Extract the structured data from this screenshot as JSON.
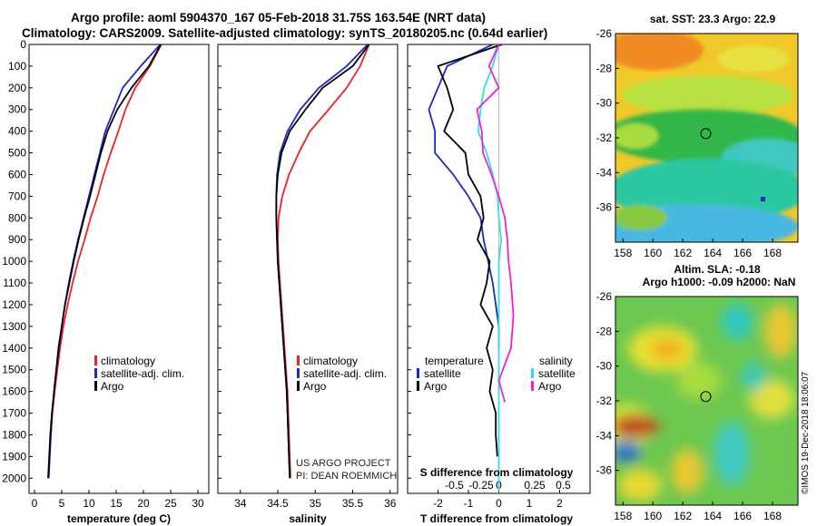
{
  "header": {
    "line1": "Argo profile: aoml 5904370_167 05-Feb-2018 31.75S 163.54E (NRT data)",
    "line2": "Climatology: CARS2009. Satellite-adjusted climatology: synTS_20180205.nc (0.64d earlier)"
  },
  "credits": {
    "project": "US ARGO PROJECT",
    "pi": "PI: DEAN ROEMMICH",
    "imos": "©IMOS 19-Dec-2018 18:06:07"
  },
  "colors": {
    "climatology": "#ee2222",
    "satellite": "#1a28c8",
    "argo": "#000000",
    "salinity_satellite": "#33ddee",
    "salinity_argo": "#ee22dd"
  },
  "chart_data": [
    {
      "id": "temperature",
      "type": "line",
      "xlabel": "temperature (deg C)",
      "ylabel": "",
      "xlim": [
        -1,
        32
      ],
      "ylim": [
        2070,
        0
      ],
      "xticks": [
        0,
        5,
        10,
        15,
        20,
        25,
        30
      ],
      "yticks": [
        0,
        100,
        200,
        300,
        400,
        500,
        600,
        700,
        800,
        900,
        1000,
        1100,
        1200,
        1300,
        1400,
        1500,
        1600,
        1700,
        1800,
        1900,
        2000
      ],
      "legend": [
        "climatology",
        "satellite-adj. clim.",
        "Argo"
      ],
      "series": [
        {
          "name": "climatology",
          "color": "#ee2222",
          "x": [
            23.3,
            21.2,
            18.5,
            16.7,
            15.4,
            14.0,
            12.7,
            11.6,
            10.3,
            9.2,
            8.0,
            7.0,
            6.1,
            5.3,
            4.7,
            4.2,
            3.7,
            3.3,
            3.0,
            2.8,
            2.6
          ],
          "y": [
            0,
            100,
            200,
            300,
            400,
            500,
            600,
            700,
            800,
            900,
            1000,
            1100,
            1200,
            1300,
            1400,
            1500,
            1600,
            1700,
            1800,
            1900,
            2000
          ]
        },
        {
          "name": "satellite-adj. clim.",
          "color": "#1a28c8",
          "x": [
            23.1,
            19.5,
            16.2,
            14.6,
            13.0,
            12.0,
            11.0,
            10.0,
            9.0,
            8.0,
            7.1,
            6.3,
            5.6,
            5.0,
            4.5,
            4.0,
            3.6,
            3.2,
            3.0,
            2.8,
            2.6
          ],
          "y": [
            0,
            100,
            200,
            300,
            400,
            500,
            600,
            700,
            800,
            900,
            1000,
            1100,
            1200,
            1300,
            1400,
            1500,
            1600,
            1700,
            1800,
            1900,
            2000
          ]
        },
        {
          "name": "Argo",
          "color": "#000000",
          "x": [
            23.2,
            21.0,
            17.8,
            15.2,
            13.4,
            12.2,
            11.2,
            10.2,
            9.1,
            8.1,
            7.2,
            6.4,
            5.6,
            5.0,
            4.4,
            4.0,
            3.6,
            3.2,
            2.9,
            2.7,
            2.5
          ],
          "y": [
            0,
            100,
            200,
            300,
            400,
            500,
            600,
            700,
            800,
            900,
            1000,
            1100,
            1200,
            1300,
            1400,
            1500,
            1600,
            1700,
            1800,
            1900,
            2000
          ]
        }
      ]
    },
    {
      "id": "salinity",
      "type": "line",
      "xlabel": "salinity",
      "xlim": [
        33.7,
        36.1
      ],
      "ylim": [
        2070,
        0
      ],
      "xticks": [
        34,
        34.5,
        35,
        35.5,
        36
      ],
      "legend": [
        "climatology",
        "satellite-adj. clim.",
        "Argo"
      ],
      "series": [
        {
          "name": "climatology",
          "color": "#ee2222",
          "x": [
            35.72,
            35.6,
            35.42,
            35.18,
            34.93,
            34.78,
            34.65,
            34.56,
            34.51,
            34.5,
            34.51,
            34.53,
            34.55,
            34.57,
            34.59,
            34.61,
            34.63,
            34.64,
            34.65,
            34.66,
            34.67
          ],
          "y": [
            0,
            100,
            200,
            300,
            400,
            500,
            600,
            700,
            800,
            900,
            1000,
            1100,
            1200,
            1300,
            1400,
            1500,
            1600,
            1700,
            1800,
            1900,
            2000
          ]
        },
        {
          "name": "satellite-adj. clim.",
          "color": "#1a28c8",
          "x": [
            35.7,
            35.42,
            35.05,
            34.8,
            34.63,
            34.53,
            34.49,
            34.48,
            34.48,
            34.49,
            34.5,
            34.52,
            34.54,
            34.56,
            34.58,
            34.6,
            34.62,
            34.63,
            34.64,
            34.65,
            34.66
          ],
          "y": [
            0,
            100,
            200,
            300,
            400,
            500,
            600,
            700,
            800,
            900,
            1000,
            1100,
            1200,
            1300,
            1400,
            1500,
            1600,
            1700,
            1800,
            1900,
            2000
          ]
        },
        {
          "name": "Argo",
          "color": "#000000",
          "x": [
            35.72,
            35.5,
            35.1,
            34.87,
            34.66,
            34.55,
            34.5,
            34.48,
            34.48,
            34.49,
            34.5,
            34.52,
            34.54,
            34.56,
            34.58,
            34.6,
            34.62,
            34.63,
            34.64,
            34.65,
            34.66
          ],
          "y": [
            0,
            100,
            200,
            300,
            400,
            500,
            600,
            700,
            800,
            900,
            1000,
            1100,
            1200,
            1300,
            1400,
            1500,
            1600,
            1700,
            1800,
            1900,
            2000
          ]
        }
      ],
      "annotations": [
        "US ARGO PROJECT",
        "PI: DEAN ROEMMICH"
      ]
    },
    {
      "id": "difference",
      "type": "line",
      "xlabel": "T difference from climatology",
      "xlabel_top": "S difference from climatology",
      "xlim": [
        -3,
        3
      ],
      "ylim": [
        2070,
        0
      ],
      "xticks": [
        -2,
        -1,
        0,
        1,
        2
      ],
      "s_xticks": [
        "-0.5",
        "-0.25",
        "0",
        "0.25",
        "0.5"
      ],
      "legend_temperature": [
        "temperature",
        "satellite",
        "Argo"
      ],
      "legend_salinity": [
        "salinity",
        "satellite",
        "Argo"
      ],
      "series": [
        {
          "name": "temperature satellite",
          "color": "#1a28c8",
          "x": [
            -0.2,
            -1.7,
            -2.3,
            -2.1,
            -2.1,
            -1.5,
            -1.0,
            -0.6,
            -0.5,
            -0.35,
            -0.2,
            -0.1,
            0.0,
            0.0
          ],
          "y": [
            0,
            100,
            300,
            400,
            500,
            600,
            700,
            800,
            900,
            1000,
            1100,
            1200,
            1300,
            1400
          ]
        },
        {
          "name": "temperature Argo",
          "color": "#000000",
          "x": [
            0.1,
            -2.0,
            -1.7,
            -1.5,
            -1.8,
            -1.1,
            -1.0,
            -0.6,
            -0.5,
            -0.7,
            -0.3,
            -0.4,
            -0.6,
            -0.2,
            -0.4,
            -0.2,
            -0.3,
            -0.1,
            -0.1,
            -0.05
          ],
          "y": [
            0,
            100,
            200,
            300,
            400,
            500,
            600,
            700,
            800,
            900,
            1000,
            1100,
            1200,
            1300,
            1400,
            1500,
            1600,
            1700,
            1800,
            1900
          ]
        },
        {
          "name": "salinity satellite",
          "color": "#33ddee",
          "x": [
            0.0,
            -0.05,
            -0.12,
            -0.15,
            -0.17,
            -0.1,
            -0.05,
            -0.01,
            0.0,
            0.02,
            0.0,
            0.0,
            0.0,
            0.0
          ],
          "y": [
            0,
            100,
            200,
            300,
            400,
            500,
            600,
            700,
            800,
            900,
            1000,
            1200,
            1500,
            2050
          ]
        },
        {
          "name": "salinity Argo",
          "color": "#ee22dd",
          "x": [
            0.0,
            -0.08,
            0.0,
            -0.18,
            -0.14,
            -0.13,
            -0.06,
            0.0,
            0.05,
            0.07,
            0.08,
            0.1,
            0.12,
            0.1,
            0.0,
            0.05
          ],
          "y": [
            0,
            100,
            200,
            300,
            400,
            500,
            600,
            700,
            800,
            900,
            1000,
            1100,
            1250,
            1400,
            1550,
            1650
          ]
        }
      ]
    },
    {
      "id": "sst_map",
      "type": "heatmap",
      "title": "sat. SST: 23.3 Argo: 22.9",
      "xlim": [
        157.5,
        169.7
      ],
      "ylim": [
        -38,
        -26
      ],
      "xticks": [
        158,
        160,
        162,
        164,
        166,
        168
      ],
      "yticks": [
        -26,
        -28,
        -30,
        -32,
        -34,
        -36
      ],
      "marker": {
        "lon": 163.54,
        "lat": -31.75
      }
    },
    {
      "id": "sla_map",
      "type": "heatmap",
      "title_line1": "Altim. SLA: -0.18",
      "title_line2": "Argo h1000: -0.09 h2000: NaN",
      "xlim": [
        157.5,
        169.7
      ],
      "ylim": [
        -38,
        -26
      ],
      "xticks": [
        158,
        160,
        162,
        164,
        166,
        168
      ],
      "yticks": [
        -26,
        -28,
        -30,
        -32,
        -34,
        -36
      ],
      "marker": {
        "lon": 163.54,
        "lat": -31.75
      }
    }
  ]
}
